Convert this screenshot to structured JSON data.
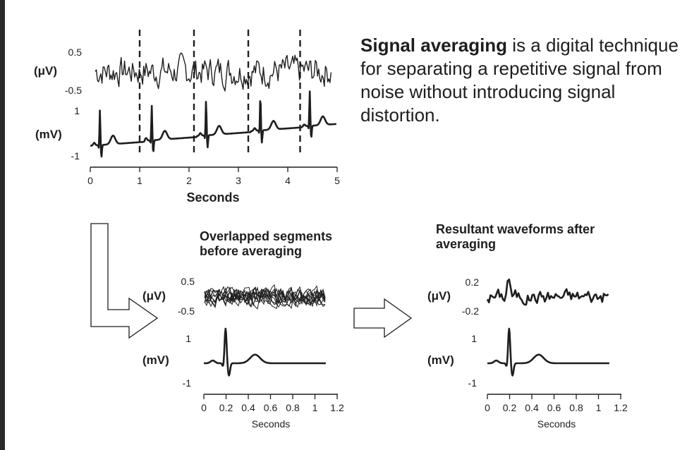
{
  "description": {
    "bold": "Signal averaging",
    "rest": " is a digital technique for separating a repetitive signal from noise without introducing signal distortion."
  },
  "top_panel": {
    "uv_unit": "(μV)",
    "mv_unit": "(mV)",
    "uv_ticks": [
      "0.5",
      "-0.5"
    ],
    "mv_ticks": [
      "1",
      "-1"
    ],
    "x_ticks": [
      "0",
      "1",
      "2",
      "3",
      "4",
      "5"
    ],
    "x_label": "Seconds",
    "segment_boundaries_s": [
      1.0,
      2.1,
      3.2,
      4.25
    ]
  },
  "middle_panel": {
    "title_line1": "Overlapped segments",
    "title_line2": "before averaging",
    "uv_unit": "(μV)",
    "mv_unit": "(mV)",
    "uv_ticks": [
      "0.5",
      "-0.5"
    ],
    "mv_ticks": [
      "1",
      "-1"
    ],
    "x_ticks": [
      "0",
      "0.2",
      "0.4",
      "0.6",
      "0.8",
      "1",
      "1.2"
    ],
    "x_label": "Seconds"
  },
  "right_panel": {
    "title_line1": "Resultant waveforms after",
    "title_line2": "averaging",
    "uv_unit": "(μV)",
    "mv_unit": "(mV)",
    "uv_ticks": [
      "0.2",
      "-0.2"
    ],
    "mv_ticks": [
      "1",
      "-1"
    ],
    "x_ticks": [
      "0",
      "0.2",
      "0.4",
      "0.6",
      "0.8",
      "1",
      "1.2"
    ],
    "x_label": "Seconds"
  },
  "colors": {
    "ink": "#1e1e1e",
    "background": "#ffffff"
  }
}
